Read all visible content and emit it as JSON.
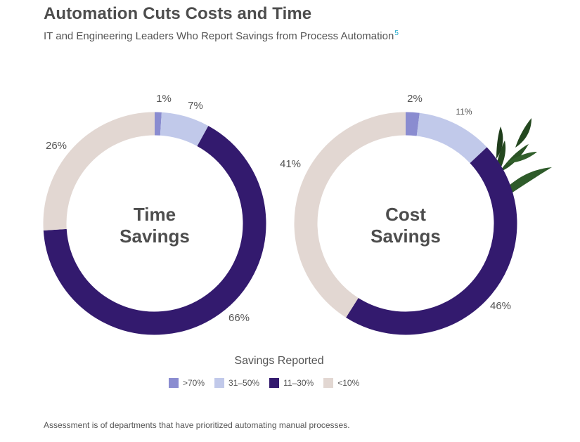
{
  "title": "Automation Cuts Costs and Time",
  "subtitle": "IT and Engineering Leaders Who Report Savings from Process Automation",
  "subtitle_footnote_ref": "5",
  "chart_data": [
    {
      "type": "pie",
      "variant": "donut",
      "center_label": [
        "Time",
        "Savings"
      ],
      "categories": [
        ">70%",
        "31–50%",
        "11–30%",
        "<10%"
      ],
      "values": [
        1,
        7,
        66,
        26
      ],
      "labels": [
        "1%",
        "7%",
        "66%",
        "26%"
      ]
    },
    {
      "type": "pie",
      "variant": "donut",
      "center_label": [
        "Cost",
        "Savings"
      ],
      "categories": [
        ">70%",
        "31–50%",
        "11–30%",
        "<10%"
      ],
      "values": [
        2,
        11,
        46,
        41
      ],
      "labels": [
        "2%",
        "11%",
        "46%",
        "41%"
      ]
    }
  ],
  "legend": {
    "title": "Savings Reported",
    "items": [
      {
        "label": ">70%",
        "color": "#8a8cd0"
      },
      {
        "label": "31–50%",
        "color": "#c1c9ea"
      },
      {
        "label": "11–30%",
        "color": "#331a6e"
      },
      {
        "label": "<10%",
        "color": "#e2d7d2"
      }
    ]
  },
  "footnote": "Assessment is of departments that have prioritized automating manual processes."
}
